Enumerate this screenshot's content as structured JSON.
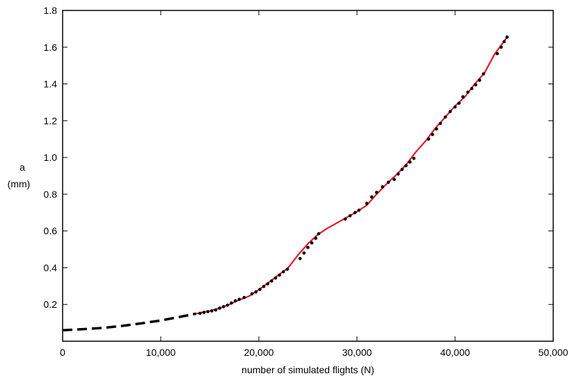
{
  "chart_data": {
    "type": "line",
    "title": "",
    "xlabel": "number of simulated flights (N)",
    "ylabel_lines": [
      "a",
      "(mm)"
    ],
    "xlim": [
      0,
      50000
    ],
    "ylim": [
      0,
      1.8
    ],
    "x_ticks": [
      0,
      10000,
      20000,
      30000,
      40000,
      50000
    ],
    "x_tick_labels": [
      "0",
      "10,000",
      "20,000",
      "30,000",
      "40,000",
      "50,000"
    ],
    "y_ticks": [
      0.2,
      0.4,
      0.6,
      0.8,
      1.0,
      1.2,
      1.4,
      1.6,
      1.8
    ],
    "y_tick_labels": [
      "0.2",
      "0.4",
      "0.6",
      "0.8",
      "1.0",
      "1.2",
      "1.4",
      "1.6",
      "1.8"
    ],
    "grid": false,
    "legend": "none",
    "colors": {
      "fit_line": "#e0182d",
      "extrapolation": "#000000",
      "points": "#000000"
    },
    "series": [
      {
        "style": "dashed",
        "x": [
          0,
          2000,
          4000,
          6000,
          8000,
          10000,
          12000,
          13600
        ],
        "y": [
          0.06,
          0.065,
          0.072,
          0.083,
          0.097,
          0.113,
          0.133,
          0.15
        ]
      },
      {
        "style": "solid",
        "x": [
          13600,
          15000,
          16000,
          17000,
          18000,
          19000,
          20000,
          21000,
          22000,
          23000,
          24000,
          25000,
          26000,
          27000,
          28000,
          29000,
          30000,
          31000,
          32000,
          33000,
          34000,
          35000,
          36000,
          37000,
          38000,
          39000,
          40000,
          41000,
          42000,
          43000,
          44000,
          45300
        ],
        "y": [
          0.15,
          0.165,
          0.18,
          0.2,
          0.225,
          0.245,
          0.28,
          0.32,
          0.36,
          0.4,
          0.47,
          0.53,
          0.58,
          0.615,
          0.645,
          0.675,
          0.705,
          0.74,
          0.8,
          0.855,
          0.905,
          0.96,
          1.03,
          1.09,
          1.16,
          1.22,
          1.28,
          1.33,
          1.4,
          1.46,
          1.56,
          1.655
        ]
      },
      {
        "style": "points",
        "x": [
          14000,
          14400,
          14800,
          15200,
          15600,
          16000,
          16400,
          16800,
          17200,
          17600,
          18000,
          18500,
          19300,
          19700,
          20100,
          20500,
          20900,
          21300,
          21700,
          22100,
          22500,
          22900,
          24200,
          24600,
          25000,
          25400,
          25800,
          26100,
          28800,
          29300,
          29800,
          30200,
          31000,
          31500,
          32000,
          32600,
          33200,
          33800,
          34200,
          34600,
          35000,
          35400,
          35800,
          37300,
          37700,
          38100,
          38500,
          39000,
          39500,
          40000,
          40400,
          40800,
          41300,
          41700,
          42100,
          42500,
          42900,
          44300,
          44700,
          45000,
          45300
        ],
        "y": [
          0.152,
          0.157,
          0.161,
          0.165,
          0.17,
          0.18,
          0.188,
          0.196,
          0.208,
          0.22,
          0.228,
          0.238,
          0.258,
          0.268,
          0.282,
          0.298,
          0.312,
          0.328,
          0.344,
          0.36,
          0.378,
          0.392,
          0.45,
          0.48,
          0.51,
          0.535,
          0.56,
          0.585,
          0.665,
          0.683,
          0.7,
          0.713,
          0.75,
          0.785,
          0.81,
          0.84,
          0.865,
          0.88,
          0.91,
          0.935,
          0.955,
          0.975,
          0.995,
          1.1,
          1.125,
          1.155,
          1.185,
          1.22,
          1.25,
          1.275,
          1.295,
          1.33,
          1.355,
          1.375,
          1.395,
          1.42,
          1.455,
          1.565,
          1.6,
          1.63,
          1.655
        ]
      }
    ]
  }
}
